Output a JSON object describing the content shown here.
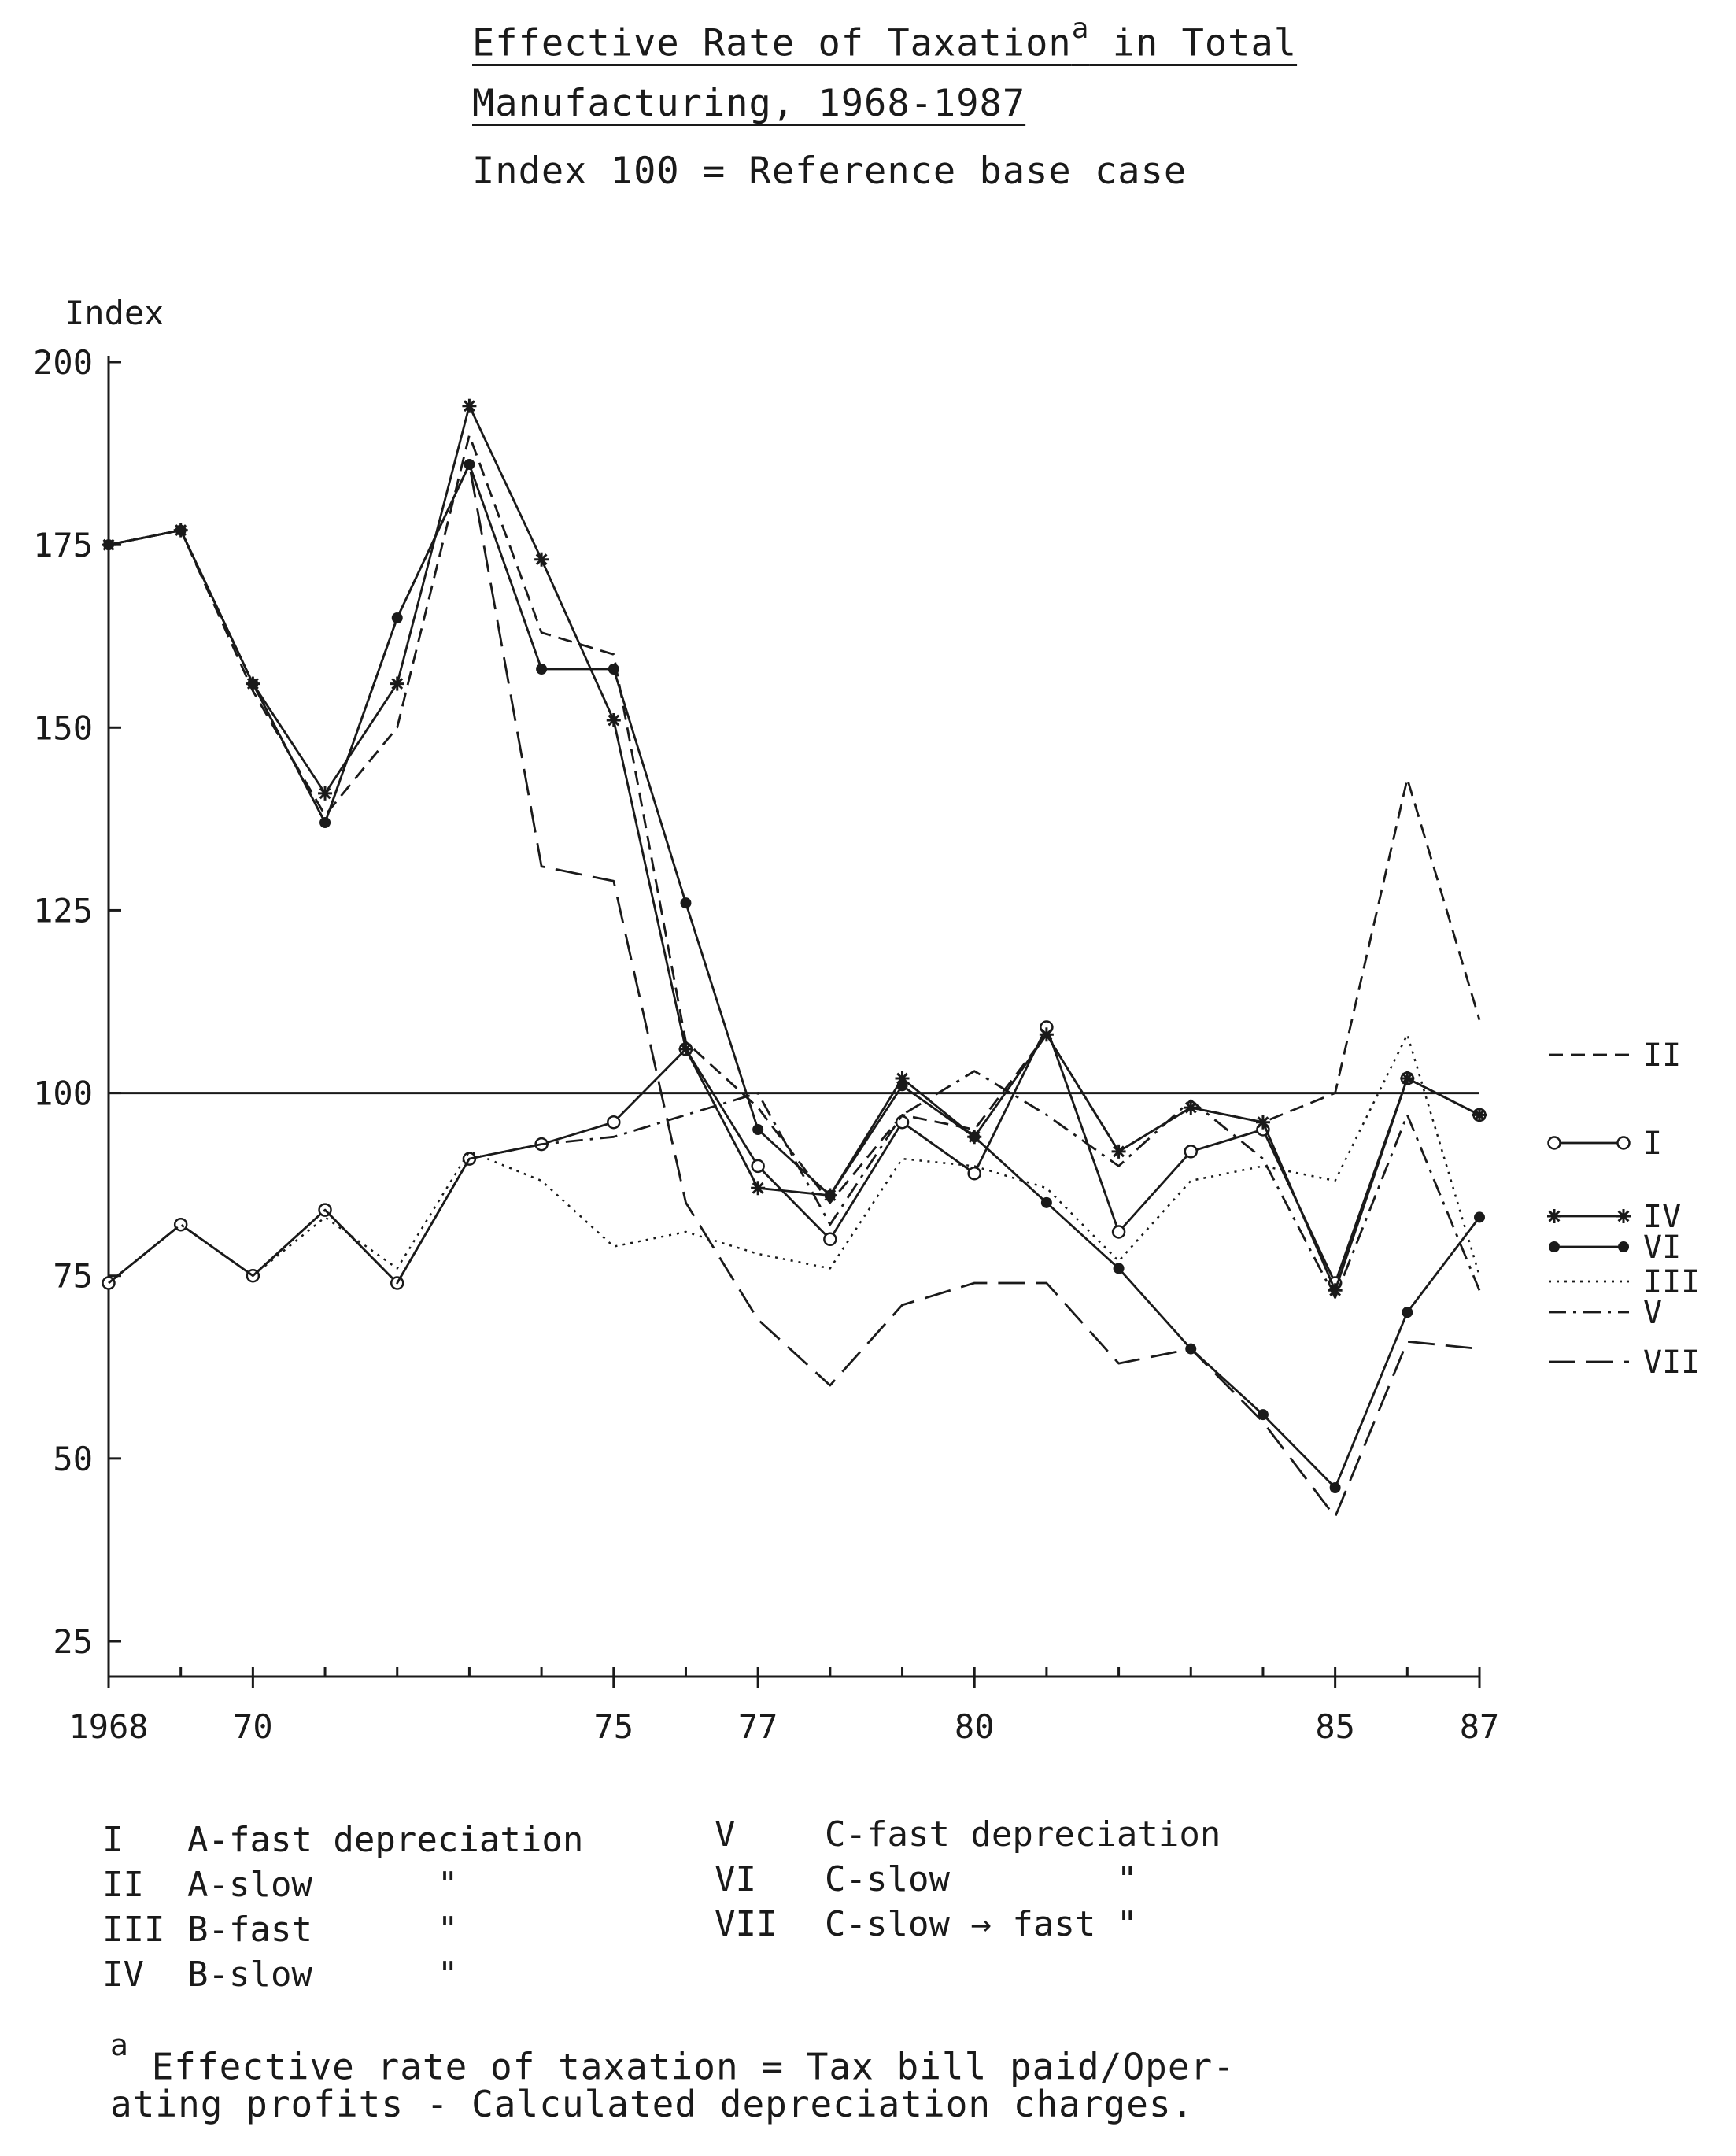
{
  "title": {
    "line1": "Effective Rate of Taxation",
    "superscript": "a",
    "line1_rest": " in Total",
    "line2": "Manufacturing, 1968-1987",
    "line3": "Index 100 = Reference base case"
  },
  "chart_data": {
    "type": "line",
    "ylabel": "Index",
    "xlabel": "",
    "x": [
      1968,
      1969,
      1970,
      1971,
      1972,
      1973,
      1974,
      1975,
      1976,
      1977,
      1978,
      1979,
      1980,
      1981,
      1982,
      1983,
      1984,
      1985,
      1986,
      1987
    ],
    "xticks": [
      1968,
      1970,
      1975,
      1977,
      1980,
      1985,
      1987
    ],
    "xtick_labels": [
      "1968",
      "70",
      "75",
      "77",
      "80",
      "85",
      "87"
    ],
    "yticks": [
      25,
      50,
      75,
      100,
      125,
      150,
      175,
      200
    ],
    "xlim": [
      1968,
      1987
    ],
    "ylim": [
      25,
      200
    ],
    "reference_line": 100,
    "grid": false,
    "legend_position": "right",
    "series": [
      {
        "name": "II",
        "style": "dashed",
        "marker": "none",
        "values": [
          175,
          177,
          155,
          138,
          150,
          190,
          163,
          160,
          107,
          98,
          85,
          97,
          95,
          108,
          92,
          98,
          96,
          100,
          143,
          110
        ]
      },
      {
        "name": "I",
        "style": "solid",
        "marker": "circle",
        "values": [
          74,
          82,
          75,
          84,
          74,
          91,
          93,
          96,
          106,
          90,
          80,
          96,
          89,
          109,
          81,
          92,
          95,
          74,
          102,
          97
        ]
      },
      {
        "name": "IV",
        "style": "solid",
        "marker": "star",
        "values": [
          175,
          177,
          156,
          141,
          156,
          194,
          173,
          151,
          106,
          87,
          86,
          102,
          94,
          108,
          92,
          98,
          96,
          73,
          102,
          97
        ]
      },
      {
        "name": "VI",
        "style": "solid",
        "marker": "dot",
        "values": [
          175,
          177,
          156,
          137,
          165,
          186,
          158,
          158,
          126,
          95,
          86,
          101,
          94,
          85,
          76,
          65,
          56,
          46,
          70,
          83
        ]
      },
      {
        "name": "III",
        "style": "dotted",
        "marker": "none",
        "values": [
          74,
          82,
          75,
          83,
          76,
          92,
          88,
          79,
          81,
          78,
          76,
          91,
          90,
          87,
          77,
          88,
          90,
          88,
          108,
          75
        ]
      },
      {
        "name": "V",
        "style": "dashdot",
        "marker": "none",
        "values": [
          74,
          82,
          75,
          84,
          74,
          91,
          93,
          94,
          97,
          100,
          82,
          97,
          103,
          97,
          90,
          99,
          91,
          72,
          97,
          73
        ]
      },
      {
        "name": "VII",
        "style": "longdashed",
        "marker": "none",
        "values": [
          175,
          177,
          156,
          137,
          165,
          186,
          131,
          129,
          85,
          69,
          60,
          71,
          74,
          74,
          63,
          65,
          55,
          42,
          66,
          65
        ]
      }
    ]
  },
  "legend_notes": [
    {
      "key": "I",
      "desc": "A-fast depreciation"
    },
    {
      "key": "II",
      "desc": "A-slow      \""
    },
    {
      "key": "III",
      "desc": "B-fast      \""
    },
    {
      "key": "IV",
      "desc": "B-slow      \""
    },
    {
      "key": "V",
      "desc": "C-fast depreciation"
    },
    {
      "key": "VI",
      "desc": "C-slow        \""
    },
    {
      "key": "VII",
      "desc": "C-slow → fast \""
    }
  ],
  "footnote": {
    "marker": "a",
    "line1": " Effective rate of taxation = Tax bill paid/Oper-",
    "line2": "ating profits - Calculated depreciation charges."
  }
}
